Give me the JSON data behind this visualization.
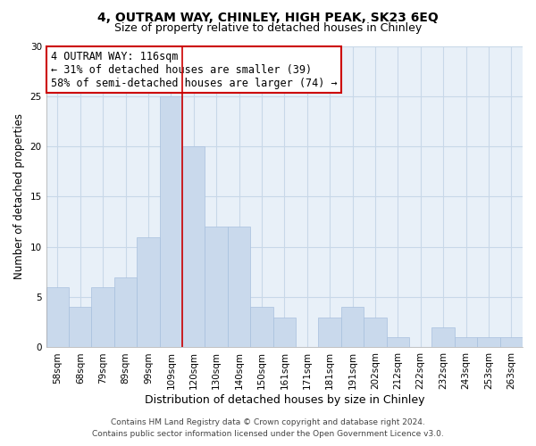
{
  "title": "4, OUTRAM WAY, CHINLEY, HIGH PEAK, SK23 6EQ",
  "subtitle": "Size of property relative to detached houses in Chinley",
  "xlabel": "Distribution of detached houses by size in Chinley",
  "ylabel": "Number of detached properties",
  "bin_labels": [
    "58sqm",
    "68sqm",
    "79sqm",
    "89sqm",
    "99sqm",
    "109sqm",
    "120sqm",
    "130sqm",
    "140sqm",
    "150sqm",
    "161sqm",
    "171sqm",
    "181sqm",
    "191sqm",
    "202sqm",
    "212sqm",
    "222sqm",
    "232sqm",
    "243sqm",
    "253sqm",
    "263sqm"
  ],
  "bar_heights": [
    6,
    4,
    6,
    7,
    11,
    25,
    20,
    12,
    12,
    4,
    3,
    0,
    3,
    4,
    3,
    1,
    0,
    2,
    1,
    1,
    1
  ],
  "highlight_index": 5,
  "bar_color": "#c9d9ec",
  "bar_edge_color": "#a8c0de",
  "highlight_edge_color": "#cc0000",
  "annotation_line1": "4 OUTRAM WAY: 116sqm",
  "annotation_line2": "← 31% of detached houses are smaller (39)",
  "annotation_line3": "58% of semi-detached houses are larger (74) →",
  "annotation_box_edge_color": "#cc0000",
  "annotation_box_face_color": "#ffffff",
  "ylim": [
    0,
    30
  ],
  "yticks": [
    0,
    5,
    10,
    15,
    20,
    25,
    30
  ],
  "footer_line1": "Contains HM Land Registry data © Crown copyright and database right 2024.",
  "footer_line2": "Contains public sector information licensed under the Open Government Licence v3.0.",
  "grid_color": "#c8d8e8",
  "bg_color": "#e8f0f8",
  "title_fontsize": 10,
  "subtitle_fontsize": 9,
  "xlabel_fontsize": 9,
  "ylabel_fontsize": 8.5,
  "tick_fontsize": 7.5,
  "annotation_fontsize": 8.5,
  "footer_fontsize": 6.5
}
